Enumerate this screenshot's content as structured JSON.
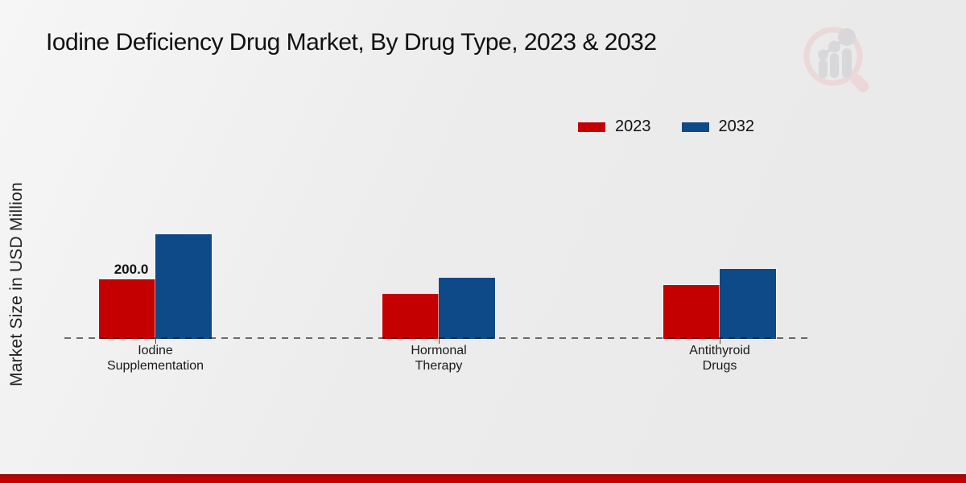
{
  "chart_data": {
    "type": "bar",
    "title": "Iodine Deficiency Drug Market, By Drug Type, 2023 & 2032",
    "xlabel": "",
    "ylabel": "Market Size in USD Million",
    "categories": [
      "Iodine Supplementation",
      "Hormonal Therapy",
      "Antithyroid Drugs"
    ],
    "series": [
      {
        "name": "2023",
        "color": "#c40001",
        "values": [
          200.0,
          150.0,
          180.0
        ]
      },
      {
        "name": "2032",
        "color": "#0d4a87",
        "values": [
          350.0,
          205.0,
          235.0
        ]
      }
    ],
    "bar_labels": [
      {
        "series_index": 0,
        "category_index": 0,
        "text": "200.0"
      }
    ],
    "ylim": [
      0,
      370
    ],
    "grid": false,
    "legend_position": "top-right",
    "baseline_style": "dashed",
    "value_note": "only the 200.0 label is printed on the chart; other values estimated from bar heights"
  },
  "watermark": {
    "icon": "magnifier-bar-chart-logo"
  },
  "footer": {
    "accent_color": "#c40000"
  }
}
